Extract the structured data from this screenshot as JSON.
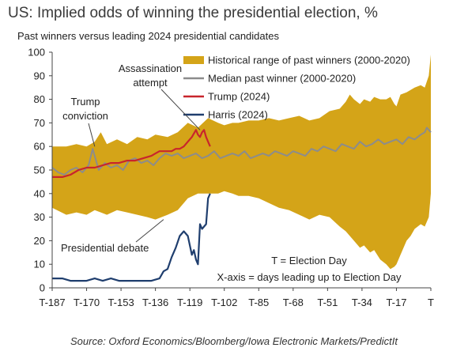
{
  "title": "US: Implied odds of winning the presidential election, %",
  "subtitle": "Past winners versus leading 2024 presidential candidates",
  "source": "Source: Oxford Economics/Bloomberg/Iowa Electronic Markets/PredictIt",
  "colors": {
    "range": "#d4a418",
    "median": "#8c8c8c",
    "trump": "#c8252c",
    "harris": "#1f3e6e",
    "axis": "#444444",
    "text": "#222222"
  },
  "chart_data": {
    "type": "area",
    "xlabel": "",
    "ylabel": "",
    "ylim": [
      0,
      100
    ],
    "yticks": [
      0,
      10,
      20,
      30,
      40,
      50,
      60,
      70,
      80,
      90,
      100
    ],
    "xlim": [
      187,
      0
    ],
    "xticks": [
      187,
      170,
      153,
      136,
      119,
      102,
      85,
      68,
      51,
      34,
      17,
      0
    ],
    "xtick_labels": [
      "T-187",
      "T-170",
      "T-153",
      "T-136",
      "T-119",
      "T-102",
      "T-85",
      "T-68",
      "T-51",
      "T-34",
      "T-17",
      "T"
    ],
    "grid": false,
    "legend": {
      "position": "top-right",
      "entries": [
        "Historical range of past winners (2000-2020)",
        "Median past winner (2000-2020)",
        "Trump (2024)",
        "Harris (2024)"
      ]
    },
    "annotations": [
      {
        "text": "Trump conviction",
        "lines": [
          "Trump",
          "conviction"
        ],
        "x": 166,
        "y": 60
      },
      {
        "text": "Assassination attempt",
        "lines": [
          "Assassination",
          "attempt"
        ],
        "x": 114,
        "y": 67
      },
      {
        "text": "Presidential debate",
        "lines": [
          "Presidential debate"
        ],
        "x": 132,
        "y": 29
      },
      {
        "text": "T = Election Day",
        "lines": [
          "T = Election Day"
        ]
      },
      {
        "text": "X-axis = days leading up to Election Day",
        "lines": [
          "X-axis = days leading up to Election Day"
        ]
      }
    ],
    "series": [
      {
        "name": "Historical range of past winners (2000-2020)",
        "kind": "band",
        "x": [
          187,
          180,
          175,
          170,
          166,
          163,
          160,
          155,
          150,
          145,
          140,
          136,
          130,
          125,
          120,
          115,
          110,
          105,
          102,
          98,
          95,
          90,
          85,
          80,
          75,
          70,
          65,
          60,
          55,
          50,
          45,
          42,
          40,
          38,
          35,
          33,
          30,
          28,
          25,
          22,
          20,
          18,
          17,
          15,
          12,
          10,
          8,
          5,
          3,
          1,
          0
        ],
        "upper": [
          60,
          60,
          61,
          60,
          62,
          66,
          61,
          63,
          61,
          64,
          63,
          65,
          64,
          66,
          70,
          68,
          72,
          70,
          69,
          70,
          70,
          71,
          71,
          72,
          71,
          72,
          73,
          71,
          72,
          75,
          76,
          79,
          82,
          80,
          78,
          80,
          79,
          81,
          80,
          80,
          81,
          78,
          77,
          82,
          83,
          84,
          85,
          86,
          85,
          90,
          99
        ],
        "lower": [
          34,
          31,
          32,
          31,
          33,
          32,
          31,
          33,
          32,
          31,
          30,
          29,
          31,
          33,
          38,
          40,
          40,
          40,
          41,
          40,
          39,
          39,
          38,
          36,
          34,
          33,
          31,
          29,
          31,
          30,
          26,
          24,
          22,
          20,
          17,
          18,
          15,
          16,
          12,
          10,
          8,
          9,
          10,
          14,
          20,
          22,
          25,
          27,
          26,
          30,
          40
        ]
      },
      {
        "name": "Median past winner (2000-2020)",
        "kind": "line",
        "x": [
          187,
          184,
          181,
          178,
          175,
          172,
          169,
          167,
          164,
          161,
          158,
          155,
          152,
          149,
          146,
          143,
          140,
          137,
          134,
          131,
          128,
          125,
          122,
          119,
          116,
          113,
          110,
          107,
          104,
          101,
          98,
          95,
          92,
          89,
          86,
          83,
          80,
          77,
          74,
          71,
          68,
          65,
          62,
          59,
          56,
          53,
          50,
          47,
          44,
          41,
          38,
          35,
          32,
          29,
          26,
          23,
          20,
          17,
          14,
          11,
          8,
          5,
          3,
          2,
          1,
          0
        ],
        "values": [
          51,
          49,
          48,
          50,
          51,
          49,
          52,
          59,
          50,
          53,
          51,
          52,
          50,
          54,
          55,
          53,
          54,
          52,
          55,
          57,
          56,
          57,
          55,
          56,
          57,
          55,
          56,
          58,
          55,
          56,
          57,
          56,
          58,
          55,
          56,
          57,
          56,
          58,
          57,
          56,
          58,
          57,
          56,
          59,
          58,
          60,
          59,
          58,
          61,
          60,
          59,
          62,
          60,
          61,
          63,
          61,
          62,
          63,
          61,
          64,
          63,
          65,
          66,
          68,
          67,
          66
        ]
      },
      {
        "name": "Trump (2024)",
        "kind": "line",
        "x": [
          187,
          182,
          178,
          174,
          170,
          166,
          162,
          158,
          154,
          150,
          146,
          142,
          138,
          136,
          134,
          132,
          130,
          128,
          126,
          124,
          122,
          120,
          118,
          116,
          115,
          114,
          113,
          112,
          111,
          110,
          109
        ],
        "values": [
          47,
          47,
          48,
          50,
          51,
          51,
          52,
          53,
          53,
          54,
          54,
          55,
          56,
          57,
          58,
          58,
          58,
          58,
          59,
          59,
          60,
          62,
          64,
          67,
          65,
          64,
          66,
          67,
          64,
          62,
          60
        ]
      },
      {
        "name": "Harris (2024)",
        "kind": "line",
        "x": [
          187,
          182,
          178,
          174,
          170,
          166,
          162,
          158,
          154,
          150,
          146,
          142,
          138,
          134,
          132,
          130,
          128,
          126,
          124,
          122,
          120,
          118,
          117,
          116,
          115,
          114,
          113,
          112,
          111,
          110,
          109
        ],
        "values": [
          4,
          4,
          3,
          3,
          3,
          4,
          3,
          4,
          3,
          3,
          3,
          3,
          3,
          4,
          7,
          8,
          13,
          17,
          22,
          24,
          22,
          14,
          16,
          12,
          10,
          27,
          25,
          26,
          27,
          38,
          40
        ]
      }
    ]
  }
}
